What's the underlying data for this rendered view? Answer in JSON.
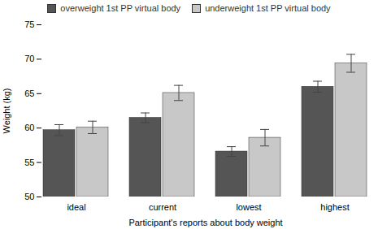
{
  "chart_data": {
    "type": "bar",
    "categories": [
      "ideal",
      "current",
      "lowest",
      "highest"
    ],
    "series": [
      {
        "name": "overweight 1st PP virtual body",
        "color": "#555555",
        "values": [
          59.7,
          61.5,
          56.6,
          66.0
        ],
        "errors": [
          0.8,
          0.7,
          0.7,
          0.8
        ]
      },
      {
        "name": "underweight 1st PP virtual body",
        "color": "#c8c8c8",
        "values": [
          60.1,
          65.1,
          58.6,
          69.4
        ],
        "errors": [
          0.9,
          1.1,
          1.2,
          1.3
        ]
      }
    ],
    "xlabel": "Participant's reports about body weight",
    "ylabel": "Weight (kg)",
    "ylim": [
      50,
      75
    ],
    "yticks": [
      50,
      55,
      60,
      65,
      70,
      75
    ],
    "legend": "upper center"
  }
}
